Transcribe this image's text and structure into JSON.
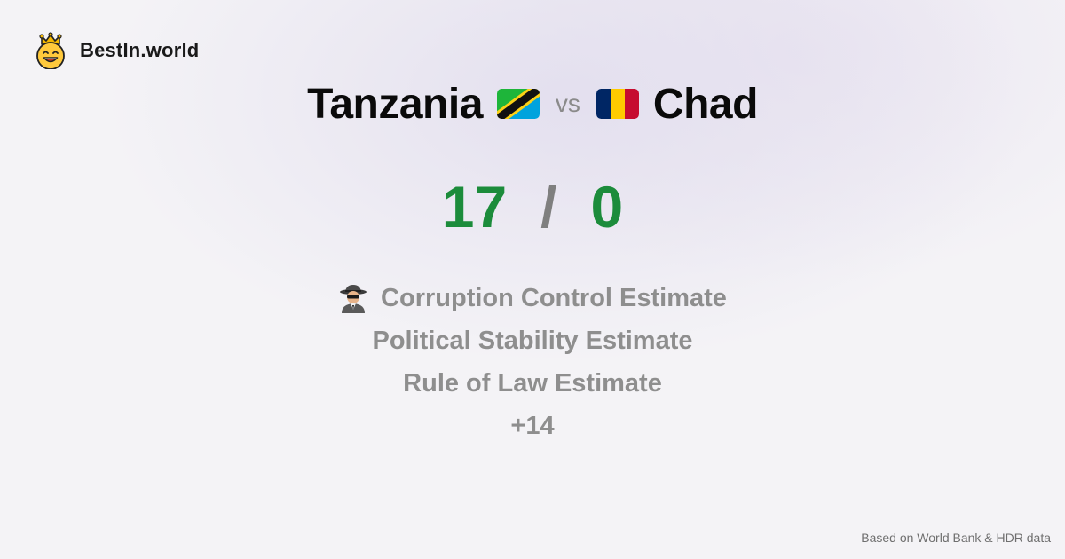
{
  "brand": {
    "name": "BestIn.world",
    "icon": "crowned-smiley-icon"
  },
  "comparison": {
    "left_country": "Tanzania",
    "left_flag": "tanzania-flag-icon",
    "vs_label": "vs",
    "right_country": "Chad",
    "right_flag": "chad-flag-icon"
  },
  "score": {
    "left": "17",
    "separator": "/",
    "right": "0",
    "color": "#1c8c3b"
  },
  "metrics": [
    {
      "label": "Corruption Control Estimate",
      "icon": "spy-icon"
    },
    {
      "label": "Political Stability Estimate"
    },
    {
      "label": "Rule of Law Estimate"
    },
    {
      "label": "+14"
    }
  ],
  "footer": {
    "source": "Based on World Bank & HDR data"
  }
}
